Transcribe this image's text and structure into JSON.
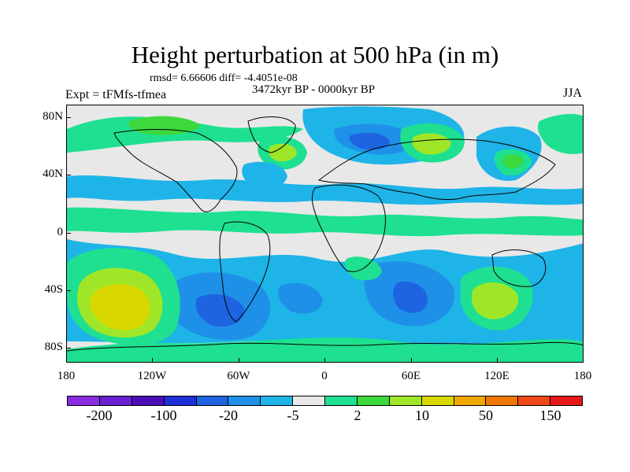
{
  "title": "Height perturbation at 500 hPa (in m)",
  "stats_text": "rmsd= 6.66606 diff= -4.4051e-08",
  "subtitle": "3472kyr BP - 0000kyr BP",
  "experiment": "Expt = tFMfs-tfmea",
  "season": "JJA",
  "axes": {
    "y_labels": [
      "80N",
      "40N",
      "0",
      "40S",
      "80S"
    ],
    "x_labels": [
      "180",
      "120W",
      "60W",
      "0",
      "60E",
      "120E",
      "180"
    ]
  },
  "colorbar": {
    "colors": [
      "#8a2be2",
      "#6a1fd0",
      "#4b0fb8",
      "#1f2fd8",
      "#1e64e0",
      "#1e90e8",
      "#1eb4e8",
      "#e8e8e8",
      "#1ee090",
      "#3cd83c",
      "#a0e628",
      "#d8d800",
      "#f0a800",
      "#f07800",
      "#f04818",
      "#e81818"
    ],
    "labels": [
      "-200",
      "-100",
      "-20",
      "-5",
      "2",
      "10",
      "50",
      "150"
    ]
  },
  "field_colors": {
    "neutral": "#e8e8e8",
    "pos1": "#1ee090",
    "pos2": "#3cd83c",
    "pos3": "#a0e628",
    "pos4": "#d8d800",
    "pos5": "#f0a800",
    "neg1": "#1eb4e8",
    "neg2": "#1e90e8",
    "neg3": "#1e64e0"
  }
}
